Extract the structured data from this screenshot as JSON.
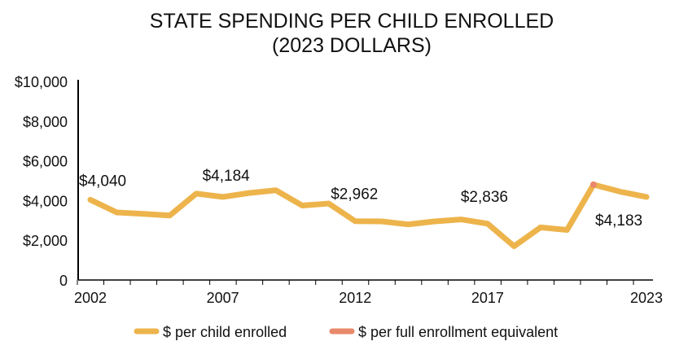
{
  "chart_data": {
    "type": "line",
    "title": [
      "STATE SPENDING PER CHILD ENROLLED",
      "(2023 DOLLARS)"
    ],
    "xlabel": "",
    "ylabel": "",
    "ylim": [
      0,
      10000
    ],
    "yticks": [
      0,
      2000,
      4000,
      6000,
      8000,
      10000
    ],
    "ytick_labels": [
      "0",
      "$2,000",
      "$4,000",
      "$6,000",
      "$8,000",
      "$10,000"
    ],
    "xticks": [
      2002,
      2007,
      2012,
      2017,
      2023
    ],
    "xtick_labels": [
      "2002",
      "2007",
      "2012",
      "2017",
      "2023"
    ],
    "grid": false,
    "legend_position": "bottom",
    "x": [
      2002,
      2003,
      2004,
      2005,
      2006,
      2007,
      2008,
      2009,
      2010,
      2011,
      2012,
      2013,
      2014,
      2015,
      2016,
      2017,
      2018,
      2019,
      2020,
      2021,
      2022,
      2023
    ],
    "series": [
      {
        "name": "$ per child enrolled",
        "color": "#EDB44C",
        "values": [
          4040,
          3400,
          3330,
          3250,
          4350,
          4184,
          4380,
          4520,
          3750,
          3850,
          2962,
          2950,
          2800,
          2950,
          3050,
          2836,
          1700,
          2650,
          2520,
          4800,
          4450,
          4183
        ]
      },
      {
        "name": "$ per full enrollment equivalent",
        "color": "#E8896B",
        "values": [
          null,
          null,
          null,
          null,
          null,
          null,
          null,
          null,
          null,
          null,
          null,
          null,
          null,
          null,
          null,
          null,
          null,
          null,
          null,
          4800,
          null,
          null
        ]
      }
    ],
    "annotations": [
      {
        "x": 2002,
        "label": "$4,040"
      },
      {
        "x": 2007,
        "label": "$4,184"
      },
      {
        "x": 2012,
        "label": "$2,962"
      },
      {
        "x": 2017,
        "label": "$2,836"
      },
      {
        "x": 2023,
        "label": "$4,183"
      }
    ]
  }
}
